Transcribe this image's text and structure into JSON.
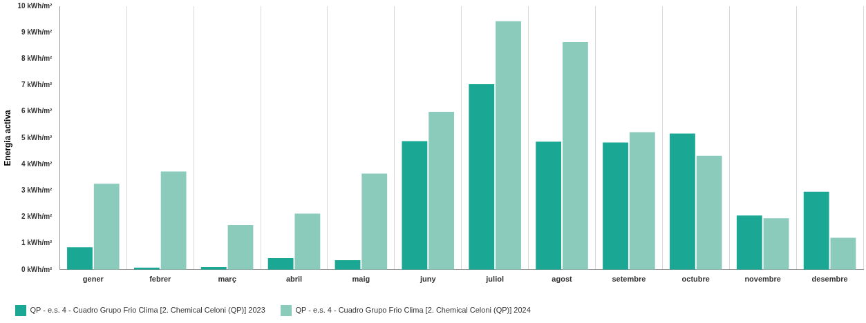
{
  "chart_data": {
    "type": "bar",
    "ylabel": "Energia activa",
    "categories": [
      "gener",
      "febrer",
      "març",
      "abril",
      "maig",
      "juny",
      "juliol",
      "agost",
      "setembre",
      "octubre",
      "novembre",
      "desembre"
    ],
    "series": [
      {
        "name": "QP - e.s. 4 - Cuadro Grupo Frio Clima [2. Chemical Celoni (QP)] 2023",
        "color": "#1aa895",
        "values": [
          0.85,
          0.08,
          0.1,
          0.44,
          0.36,
          4.88,
          7.04,
          4.86,
          4.83,
          5.17,
          2.06,
          2.96
        ]
      },
      {
        "name": "QP - e.s. 4 - Cuadro Grupo Frio Clima [2. Chemical Celoni (QP)] 2024",
        "color": "#8acbbc",
        "values": [
          3.26,
          3.73,
          1.7,
          2.13,
          3.65,
          5.99,
          9.43,
          8.64,
          5.22,
          4.32,
          1.95,
          1.21
        ]
      }
    ],
    "ylim": [
      0,
      10
    ],
    "yticks": [
      {
        "value": 0,
        "label": "0 kWh/m²"
      },
      {
        "value": 1,
        "label": "1 kWh/m²"
      },
      {
        "value": 2,
        "label": "2 kWh/m²"
      },
      {
        "value": 3,
        "label": "3 kWh/m²"
      },
      {
        "value": 4,
        "label": "4 kWh/m²"
      },
      {
        "value": 5,
        "label": "5 kWh/m²"
      },
      {
        "value": 6,
        "label": "6 kWh/m²"
      },
      {
        "value": 7,
        "label": "7 kWh/m²"
      },
      {
        "value": 8,
        "label": "8 kWh/m²"
      },
      {
        "value": 9,
        "label": "9 kWh/m²"
      },
      {
        "value": 10,
        "label": "10 kWh/m²"
      }
    ],
    "grid": "x",
    "legend": "bottom left"
  }
}
